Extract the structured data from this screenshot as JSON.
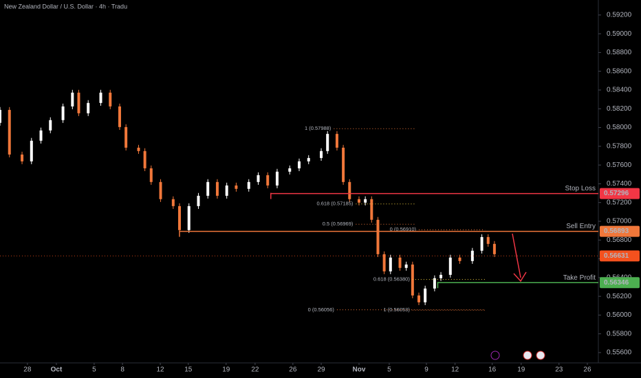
{
  "chart_data": {
    "type": "candlestick",
    "title": "New Zealand Dollar / U.S. Dollar · 4h · Tradu",
    "up_color": "#ffffff",
    "down_color": "#f0773a",
    "ylim": [
      0.5549,
      0.5936
    ],
    "xlim": [
      0,
      190
    ],
    "yticks": [
      {
        "value": 0.556,
        "label": "0.55600"
      },
      {
        "value": 0.558,
        "label": "0.55800"
      },
      {
        "value": 0.56,
        "label": "0.56000"
      },
      {
        "value": 0.562,
        "label": "0.56200"
      },
      {
        "value": 0.564,
        "label": "0.56400"
      },
      {
        "value": 0.566,
        "label": "0.56600"
      },
      {
        "value": 0.568,
        "label": "0.56800"
      },
      {
        "value": 0.57,
        "label": "0.57000"
      },
      {
        "value": 0.572,
        "label": "0.57200"
      },
      {
        "value": 0.574,
        "label": "0.57400"
      },
      {
        "value": 0.576,
        "label": "0.57600"
      },
      {
        "value": 0.578,
        "label": "0.57800"
      },
      {
        "value": 0.58,
        "label": "0.58000"
      },
      {
        "value": 0.582,
        "label": "0.58200"
      },
      {
        "value": 0.584,
        "label": "0.58400"
      },
      {
        "value": 0.586,
        "label": "0.58600"
      },
      {
        "value": 0.588,
        "label": "0.58800"
      },
      {
        "value": 0.59,
        "label": "0.59000"
      },
      {
        "value": 0.592,
        "label": "0.59200"
      }
    ],
    "xticks": [
      {
        "value": 8.7,
        "label": "28"
      },
      {
        "value": 17.9,
        "label": "Oct"
      },
      {
        "value": 29.9,
        "label": "5"
      },
      {
        "value": 38.9,
        "label": "8"
      },
      {
        "value": 50.9,
        "label": "12"
      },
      {
        "value": 59.8,
        "label": "15"
      },
      {
        "value": 71.8,
        "label": "19"
      },
      {
        "value": 81,
        "label": "22"
      },
      {
        "value": 93,
        "label": "26"
      },
      {
        "value": 102,
        "label": "29"
      },
      {
        "value": 114,
        "label": "Nov"
      },
      {
        "value": 123.6,
        "label": "5"
      },
      {
        "value": 135.4,
        "label": "9"
      },
      {
        "value": 144.5,
        "label": "12"
      },
      {
        "value": 156.3,
        "label": "16"
      },
      {
        "value": 165.5,
        "label": "19"
      },
      {
        "value": 177.5,
        "label": "23"
      },
      {
        "value": 186.5,
        "label": "26"
      }
    ],
    "candles": {
      "x": [
        0,
        3,
        7,
        10,
        13,
        16,
        20,
        23,
        25,
        28,
        32,
        35,
        38,
        40,
        44,
        46,
        48,
        51,
        55,
        57,
        60,
        63,
        66,
        69,
        72,
        75,
        79,
        82,
        85,
        88,
        92,
        95,
        98,
        102,
        104,
        107,
        109,
        111,
        114,
        116,
        118,
        120,
        122,
        124,
        127,
        129,
        131,
        133,
        135,
        138,
        140,
        143,
        146,
        150,
        153,
        155,
        157
      ],
      "open": [
        0.5805,
        0.58188,
        0.57712,
        0.57639,
        0.57859,
        0.57969,
        0.58079,
        0.58225,
        0.58372,
        0.58152,
        0.58262,
        0.58372,
        0.58225,
        0.58005,
        0.57785,
        0.57749,
        0.57565,
        0.57419,
        0.57236,
        0.57162,
        0.56906,
        0.57162,
        0.57272,
        0.57419,
        0.57272,
        0.57382,
        0.57346,
        0.57419,
        0.57492,
        0.57382,
        0.57529,
        0.57565,
        0.57639,
        0.57675,
        0.57749,
        0.57932,
        0.57785,
        0.57419,
        0.57236,
        0.57199,
        0.57236,
        0.57016,
        0.56649,
        0.56466,
        0.56613,
        0.56503,
        0.56539,
        0.56209,
        0.56136,
        0.56283,
        0.56393,
        0.56429,
        0.56613,
        0.56576,
        0.56686,
        0.56832,
        0.56759
      ],
      "high": [
        0.58218,
        0.58218,
        0.57742,
        0.57889,
        0.57999,
        0.58109,
        0.58255,
        0.58402,
        0.58402,
        0.58292,
        0.58402,
        0.58402,
        0.58255,
        0.58035,
        0.57815,
        0.57779,
        0.57595,
        0.57449,
        0.57266,
        0.57192,
        0.57192,
        0.57302,
        0.57449,
        0.57449,
        0.57412,
        0.57412,
        0.57449,
        0.57522,
        0.57522,
        0.57559,
        0.57595,
        0.57669,
        0.57705,
        0.57779,
        0.57962,
        0.57962,
        0.57815,
        0.57449,
        0.57266,
        0.57266,
        0.57266,
        0.57046,
        0.56679,
        0.56643,
        0.56643,
        0.56569,
        0.56569,
        0.56239,
        0.56313,
        0.56423,
        0.56459,
        0.56643,
        0.56643,
        0.56716,
        0.56862,
        0.56862,
        0.56789
      ],
      "low": [
        0.5802,
        0.57682,
        0.57609,
        0.57609,
        0.57829,
        0.57939,
        0.58049,
        0.58195,
        0.58122,
        0.58122,
        0.58232,
        0.58195,
        0.57975,
        0.57755,
        0.57719,
        0.57535,
        0.57389,
        0.57206,
        0.57132,
        0.56876,
        0.56876,
        0.57132,
        0.57242,
        0.57242,
        0.57242,
        0.57316,
        0.57316,
        0.57389,
        0.57352,
        0.57352,
        0.57499,
        0.57535,
        0.57609,
        0.57645,
        0.57719,
        0.57755,
        0.57389,
        0.57206,
        0.57169,
        0.57169,
        0.56986,
        0.56619,
        0.56436,
        0.56436,
        0.56473,
        0.56473,
        0.56179,
        0.56106,
        0.56106,
        0.56253,
        0.56363,
        0.56399,
        0.56546,
        0.56546,
        0.56656,
        0.56729,
        0.56619
      ],
      "close": [
        0.58188,
        0.57712,
        0.57639,
        0.57859,
        0.57969,
        0.58079,
        0.58225,
        0.58372,
        0.58152,
        0.58262,
        0.58372,
        0.58225,
        0.58005,
        0.57785,
        0.57749,
        0.57565,
        0.57419,
        0.57236,
        0.57162,
        0.56906,
        0.57162,
        0.57272,
        0.57419,
        0.57272,
        0.57382,
        0.57346,
        0.57419,
        0.57492,
        0.57382,
        0.57529,
        0.57565,
        0.57639,
        0.57675,
        0.57749,
        0.57932,
        0.57785,
        0.57419,
        0.57236,
        0.57199,
        0.57236,
        0.57016,
        0.56649,
        0.56466,
        0.56613,
        0.56503,
        0.56539,
        0.56209,
        0.56136,
        0.56283,
        0.56393,
        0.56429,
        0.56613,
        0.56576,
        0.56686,
        0.56832,
        0.56759,
        0.56649
      ]
    },
    "fib_levels": [
      {
        "label": "1 (0.57988)",
        "price": 0.57988,
        "x_from": 106,
        "x_to": 132,
        "color": "#f0773a"
      },
      {
        "label": "0.618 (0.57185)",
        "price": 0.57185,
        "x_from": 113,
        "x_to": 132,
        "color": "#f5d142"
      },
      {
        "label": "0.5 (0.56969)",
        "price": 0.56969,
        "x_from": 113,
        "x_to": 132,
        "color": "#f0773a"
      },
      {
        "label": "0 (0.56910)",
        "price": 0.5691,
        "x_from": 133,
        "x_to": 154,
        "color": "#f0773a"
      },
      {
        "label": "0.618 (0.56380)",
        "price": 0.5638,
        "x_from": 131,
        "x_to": 154,
        "color": "#f5d142"
      },
      {
        "label": "0 (0.56056)",
        "price": 0.56056,
        "x_from": 107,
        "x_to": 154,
        "color": "#f0773a"
      },
      {
        "label": "1 (0.56053)",
        "price": 0.56053,
        "x_from": 131,
        "x_to": 154,
        "color": "#f0773a"
      }
    ],
    "levels": [
      {
        "name": "Stop Loss",
        "price": 0.57296,
        "x_from": 86,
        "color": "#f23645"
      },
      {
        "name": "Sell Entry",
        "price": 0.56893,
        "x_from": 57,
        "color": "#f0773a"
      },
      {
        "name": "Take Profit",
        "price": 0.56346,
        "x_from": 139,
        "color": "#4caf50"
      }
    ],
    "last_price": 0.56631,
    "last_color": "#f4511e"
  }
}
